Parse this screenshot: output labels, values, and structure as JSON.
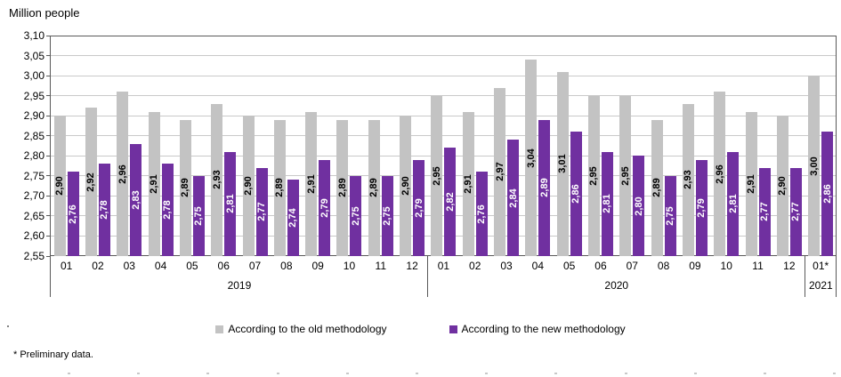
{
  "title": "Million people",
  "footnote": "* Preliminary data.",
  "chart_data": {
    "type": "bar",
    "title": "Million people",
    "ylabel": "Million people",
    "ylim": [
      2.55,
      3.1
    ],
    "y_tick_step": 0.05,
    "y_tick_labels": [
      "3,10",
      "3,05",
      "3,00",
      "2,95",
      "2,90",
      "2,85",
      "2,80",
      "2,75",
      "2,70",
      "2,65",
      "2,60",
      "2,55"
    ],
    "decimal_separator": ",",
    "grid": "horizontal",
    "legend_position": "bottom",
    "series": [
      {
        "name": "According to the old methodology",
        "color": "#c3c3c3",
        "label_color": "#000000"
      },
      {
        "name": "According to the new methodology",
        "color": "#7030a0",
        "label_color": "#ffffff"
      }
    ],
    "groups": [
      {
        "year": "2019",
        "month": "01",
        "old": 2.9,
        "new": 2.76
      },
      {
        "year": "2019",
        "month": "02",
        "old": 2.92,
        "new": 2.78
      },
      {
        "year": "2019",
        "month": "03",
        "old": 2.96,
        "new": 2.83
      },
      {
        "year": "2019",
        "month": "04",
        "old": 2.91,
        "new": 2.78
      },
      {
        "year": "2019",
        "month": "05",
        "old": 2.89,
        "new": 2.75
      },
      {
        "year": "2019",
        "month": "06",
        "old": 2.93,
        "new": 2.81
      },
      {
        "year": "2019",
        "month": "07",
        "old": 2.9,
        "new": 2.77
      },
      {
        "year": "2019",
        "month": "08",
        "old": 2.89,
        "new": 2.74
      },
      {
        "year": "2019",
        "month": "09",
        "old": 2.91,
        "new": 2.79
      },
      {
        "year": "2019",
        "month": "10",
        "old": 2.89,
        "new": 2.75
      },
      {
        "year": "2019",
        "month": "11",
        "old": 2.89,
        "new": 2.75
      },
      {
        "year": "2019",
        "month": "12",
        "old": 2.9,
        "new": 2.79
      },
      {
        "year": "2020",
        "month": "01",
        "old": 2.95,
        "new": 2.82
      },
      {
        "year": "2020",
        "month": "02",
        "old": 2.91,
        "new": 2.76
      },
      {
        "year": "2020",
        "month": "03",
        "old": 2.97,
        "new": 2.84
      },
      {
        "year": "2020",
        "month": "04",
        "old": 3.04,
        "new": 2.89
      },
      {
        "year": "2020",
        "month": "05",
        "old": 3.01,
        "new": 2.86
      },
      {
        "year": "2020",
        "month": "06",
        "old": 2.95,
        "new": 2.81
      },
      {
        "year": "2020",
        "month": "07",
        "old": 2.95,
        "new": 2.8
      },
      {
        "year": "2020",
        "month": "08",
        "old": 2.89,
        "new": 2.75
      },
      {
        "year": "2020",
        "month": "09",
        "old": 2.93,
        "new": 2.79
      },
      {
        "year": "2020",
        "month": "10",
        "old": 2.96,
        "new": 2.81
      },
      {
        "year": "2020",
        "month": "11",
        "old": 2.91,
        "new": 2.77
      },
      {
        "year": "2020",
        "month": "12",
        "old": 2.9,
        "new": 2.77
      },
      {
        "year": "2021",
        "month": "01*",
        "old": 3.0,
        "new": 2.86
      }
    ],
    "colors": {
      "gridline": "#c9c9c9",
      "axis_line": "#595959"
    }
  }
}
